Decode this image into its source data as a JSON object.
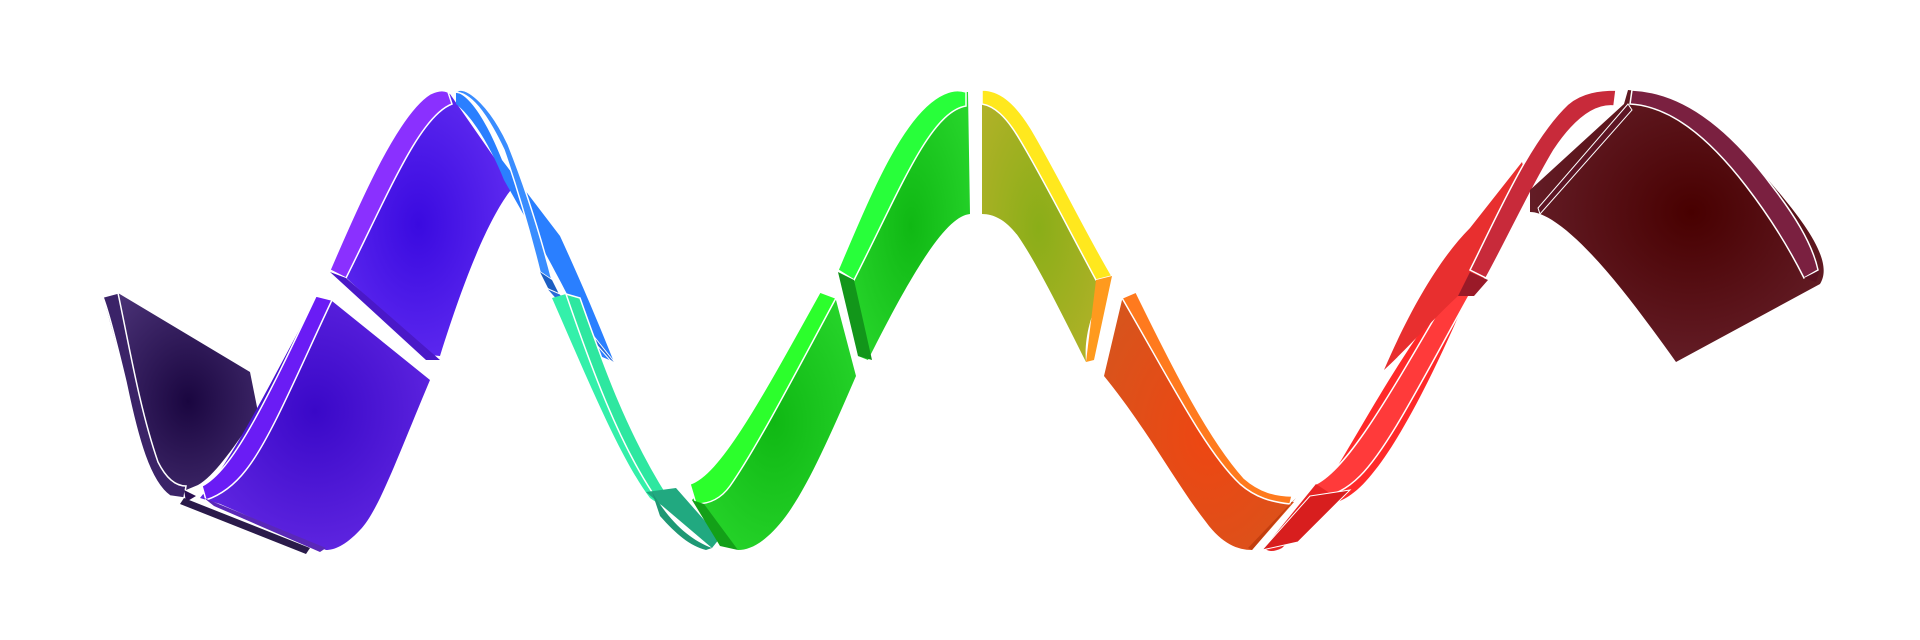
{
  "canvas": {
    "background": "#ffffff"
  },
  "ribbon": {
    "description_colors": true,
    "segments": [
      {
        "name": "dark-indigo",
        "main": "#2a0f5c",
        "highlight": "#4b2a85",
        "shadow": "#1c0840"
      },
      {
        "name": "violet",
        "main": "#4a12d6",
        "highlight": "#7a2cf5",
        "shadow": "#2f0a9a"
      },
      {
        "name": "indigo",
        "main": "#3f0fe0",
        "highlight": "#8a3dff",
        "shadow": "#2a08a8"
      },
      {
        "name": "blue",
        "main": "#2a7fff",
        "highlight": "#3a8dff",
        "shadow": "#1c5ec2"
      },
      {
        "name": "teal",
        "main": "#2ee7a0",
        "highlight": "#34f0aa",
        "shadow": "#21a980"
      },
      {
        "name": "green",
        "main": "#18c81e",
        "highlight": "#28ff3a",
        "shadow": "#12961a"
      },
      {
        "name": "bright-green",
        "main": "#1ad11e",
        "highlight": "#2cff2c",
        "shadow": "#13a018"
      },
      {
        "name": "olive",
        "main": "#98b41a",
        "highlight": "#ffe81e",
        "shadow": "#6f8612"
      },
      {
        "name": "orange",
        "main": "#f05214",
        "highlight": "#ff7a1e",
        "shadow": "#c23e0f"
      },
      {
        "name": "red",
        "main": "#ff2a2a",
        "highlight": "#ff3a3a",
        "shadow": "#c81c1c"
      },
      {
        "name": "crimson",
        "main": "#e82f2f",
        "highlight": "#f04040",
        "shadow": "#b71f1f"
      },
      {
        "name": "maroon",
        "main": "#4a0000",
        "highlight": "#7a2040",
        "shadow": "#2e0000"
      }
    ]
  }
}
